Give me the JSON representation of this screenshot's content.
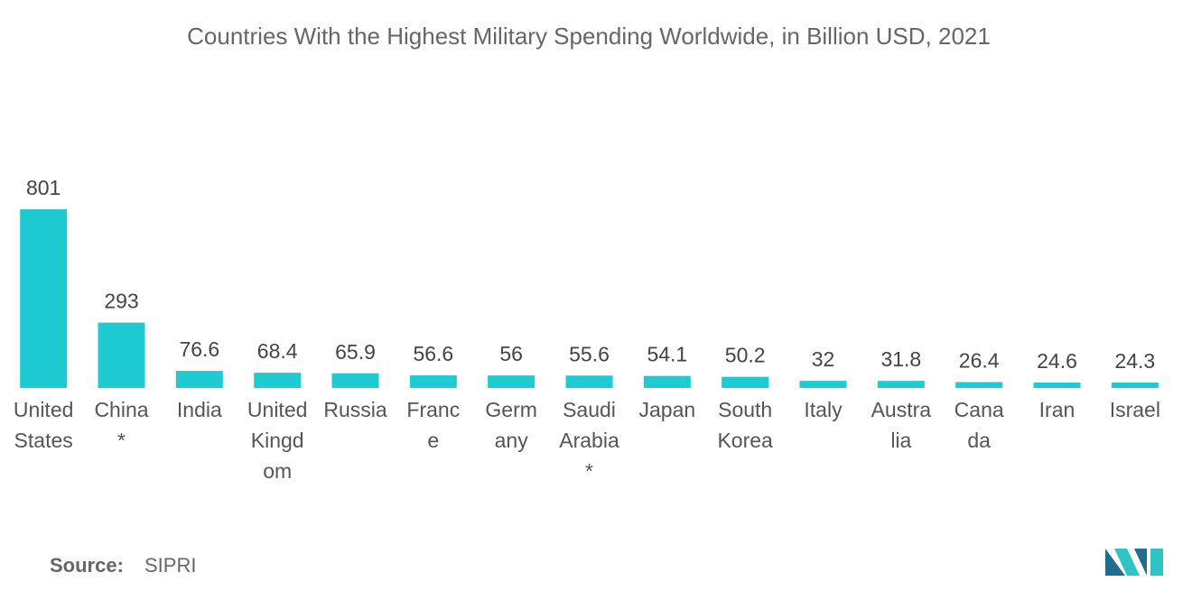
{
  "chart_data": {
    "type": "bar",
    "title": "Countries With the Highest Military Spending Worldwide, in Billion USD, 2021",
    "categories": [
      [
        "United",
        "States"
      ],
      [
        "China",
        "*"
      ],
      [
        "India"
      ],
      [
        "United",
        "Kingd",
        "om"
      ],
      [
        "Russia"
      ],
      [
        "Franc",
        "e"
      ],
      [
        "Germ",
        "any"
      ],
      [
        "Saudi",
        "Arabia",
        "*"
      ],
      [
        "Japan"
      ],
      [
        "South",
        "Korea"
      ],
      [
        "Italy"
      ],
      [
        "Austra",
        "lia"
      ],
      [
        "Cana",
        "da"
      ],
      [
        "Iran"
      ],
      [
        "Israel"
      ]
    ],
    "values": [
      801,
      293,
      76.6,
      68.4,
      65.9,
      56.6,
      56,
      55.6,
      54.1,
      50.2,
      32,
      31.8,
      26.4,
      24.6,
      24.3
    ],
    "color": "#1ecbd3",
    "source": {
      "label": "Source:",
      "text": "SIPRI"
    }
  }
}
